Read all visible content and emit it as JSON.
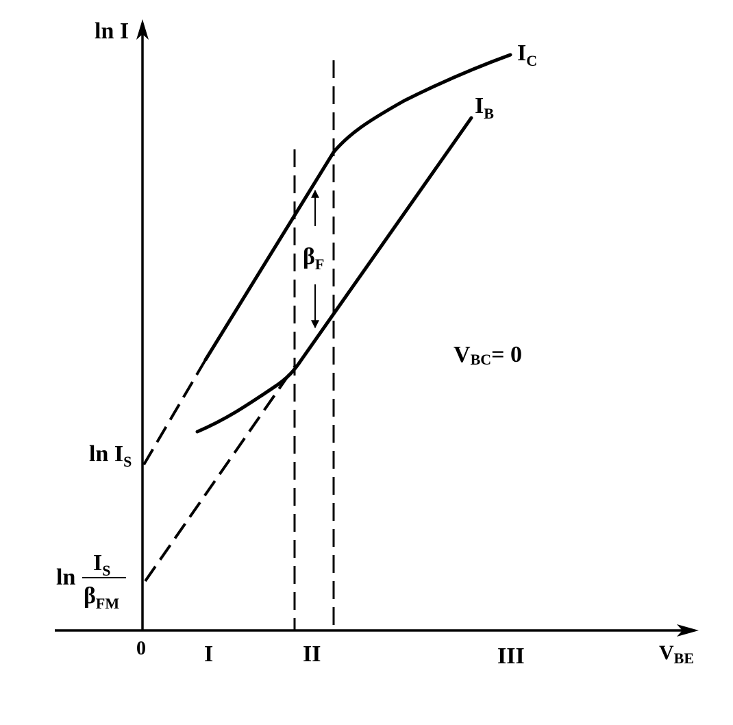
{
  "axes": {
    "y_label": "ln I",
    "x_label_main": "V",
    "x_label_sub": "BE",
    "origin_label": "0"
  },
  "curves": {
    "ic_label_main": "I",
    "ic_label_sub": "C",
    "ib_label_main": "I",
    "ib_label_sub": "B"
  },
  "y_ticks": {
    "ln_is_prefix": "ln I",
    "ln_is_sub": "S",
    "ln_frac_prefix": "ln",
    "ln_frac_num_main": "I",
    "ln_frac_num_sub": "S",
    "ln_frac_den_main": "β",
    "ln_frac_den_sub": "FM"
  },
  "annotations": {
    "beta_main": "β",
    "beta_sub": "F",
    "condition_main": "V",
    "condition_sub": "BC",
    "condition_rest": "= 0"
  },
  "regions": {
    "r1": "I",
    "r2": "II",
    "r3": "III"
  }
}
